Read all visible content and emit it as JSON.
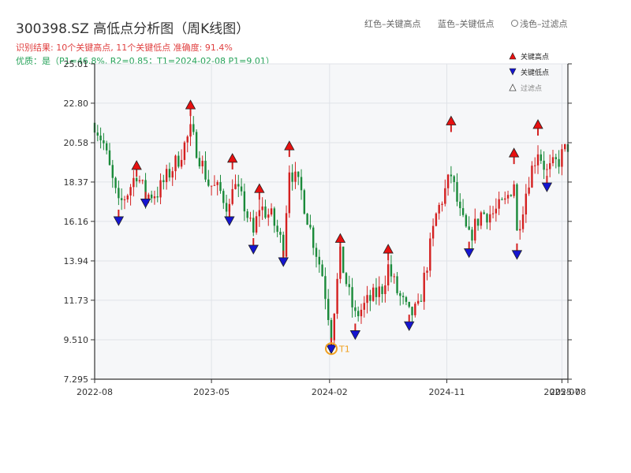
{
  "title": "300398.SZ 高低点分析图（周K线图）",
  "subtitle_result": "识别结果: 10个关键高点, 11个关键低点  准确度: 91.4%",
  "subtitle_quality": "优质：是（P1=46.8%, R2=0.85；T1=2024-02-08 P1=9.01）",
  "top_legend": {
    "red": "红色–关键高点",
    "blue": "蓝色–关键低点",
    "light": "浅色–过滤点"
  },
  "colors": {
    "up": "#d42020",
    "down": "#1a8a3a",
    "high_marker": "#e81010",
    "low_marker": "#1515d0",
    "t1_ring": "#f0a020",
    "plot_bg": "#f6f7f9",
    "grid": "#e0e3e8"
  },
  "chart_data": {
    "type": "candlestick",
    "title": "300398.SZ 高低点分析图（周K线图）",
    "xlabel": "",
    "ylabel": "",
    "ylim": [
      7.295,
      25.01
    ],
    "y_ticks": [
      "7.295",
      "9.510",
      "11.73",
      "13.94",
      "16.16",
      "18.37",
      "20.58",
      "22.80",
      "25.01"
    ],
    "x_range": [
      "2022-08-01",
      "2025-08-11"
    ],
    "x_ticks": [
      {
        "date": "2022-08-01",
        "label": "2022-08"
      },
      {
        "date": "2023-05-01",
        "label": "2023-05"
      },
      {
        "date": "2024-02-01",
        "label": "2024-02"
      },
      {
        "date": "2024-11-01",
        "label": "2024-11"
      },
      {
        "date": "2025-07-28",
        "label": "2025-07"
      },
      {
        "date": "2025-08-11",
        "label": "2025-08"
      }
    ],
    "legend": {
      "position": "top-right",
      "items": [
        "关键高点",
        "关键低点",
        "过滤点"
      ]
    },
    "key_highs": [
      {
        "date": "2022-11-07",
        "value": 19.3
      },
      {
        "date": "2023-03-13",
        "value": 22.7
      },
      {
        "date": "2023-06-19",
        "value": 19.7
      },
      {
        "date": "2023-08-21",
        "value": 18.0
      },
      {
        "date": "2023-10-30",
        "value": 20.4
      },
      {
        "date": "2024-02-26",
        "value": 15.2
      },
      {
        "date": "2024-06-17",
        "value": 14.6
      },
      {
        "date": "2024-11-11",
        "value": 21.8
      },
      {
        "date": "2025-04-07",
        "value": 20.0
      },
      {
        "date": "2025-06-02",
        "value": 21.6
      }
    ],
    "key_lows": [
      {
        "date": "2022-09-26",
        "value": 16.2
      },
      {
        "date": "2022-11-28",
        "value": 17.2
      },
      {
        "date": "2023-06-12",
        "value": 16.2
      },
      {
        "date": "2023-08-07",
        "value": 14.6
      },
      {
        "date": "2023-10-16",
        "value": 13.9
      },
      {
        "date": "2024-02-05",
        "value": 9.0
      },
      {
        "date": "2024-04-01",
        "value": 9.8
      },
      {
        "date": "2024-08-05",
        "value": 10.3
      },
      {
        "date": "2024-12-23",
        "value": 14.4
      },
      {
        "date": "2025-04-14",
        "value": 14.3
      },
      {
        "date": "2025-06-23",
        "value": 18.1
      }
    ],
    "t1": {
      "label": "T1",
      "date": "2024-02-05",
      "value": 9.01
    },
    "anchors": [
      [
        "2022-08-01",
        21.7
      ],
      [
        "2022-08-22",
        20.5
      ],
      [
        "2022-09-12",
        18.4
      ],
      [
        "2022-09-26",
        17.0
      ],
      [
        "2022-10-17",
        17.8
      ],
      [
        "2022-11-07",
        18.9
      ],
      [
        "2022-11-28",
        17.6
      ],
      [
        "2022-12-26",
        17.8
      ],
      [
        "2023-01-23",
        18.9
      ],
      [
        "2023-02-13",
        19.7
      ],
      [
        "2023-03-13",
        21.2
      ],
      [
        "2023-04-03",
        19.8
      ],
      [
        "2023-04-24",
        18.3
      ],
      [
        "2023-05-22",
        17.8
      ],
      [
        "2023-06-12",
        16.9
      ],
      [
        "2023-06-19",
        18.4
      ],
      [
        "2023-07-17",
        17.0
      ],
      [
        "2023-08-07",
        15.4
      ],
      [
        "2023-08-21",
        17.0
      ],
      [
        "2023-09-18",
        16.4
      ],
      [
        "2023-10-16",
        14.7
      ],
      [
        "2023-10-30",
        19.2
      ],
      [
        "2023-11-27",
        17.8
      ],
      [
        "2023-12-18",
        15.7
      ],
      [
        "2024-01-15",
        13.2
      ],
      [
        "2024-02-05",
        9.9
      ],
      [
        "2024-02-26",
        14.2
      ],
      [
        "2024-03-18",
        12.0
      ],
      [
        "2024-04-01",
        10.8
      ],
      [
        "2024-04-29",
        11.6
      ],
      [
        "2024-06-03",
        12.4
      ],
      [
        "2024-06-17",
        13.6
      ],
      [
        "2024-07-08",
        12.2
      ],
      [
        "2024-08-05",
        10.9
      ],
      [
        "2024-08-26",
        11.2
      ],
      [
        "2024-09-16",
        13.8
      ],
      [
        "2024-10-07",
        16.5
      ],
      [
        "2024-11-11",
        18.8
      ],
      [
        "2024-12-02",
        16.5
      ],
      [
        "2024-12-23",
        15.2
      ],
      [
        "2025-01-20",
        16.6
      ],
      [
        "2025-02-17",
        16.6
      ],
      [
        "2025-03-17",
        17.2
      ],
      [
        "2025-04-07",
        18.4
      ],
      [
        "2025-04-14",
        15.5
      ],
      [
        "2025-05-12",
        18.6
      ],
      [
        "2025-06-02",
        20.2
      ],
      [
        "2025-06-23",
        18.9
      ],
      [
        "2025-07-21",
        19.6
      ],
      [
        "2025-08-11",
        20.4
      ]
    ]
  }
}
